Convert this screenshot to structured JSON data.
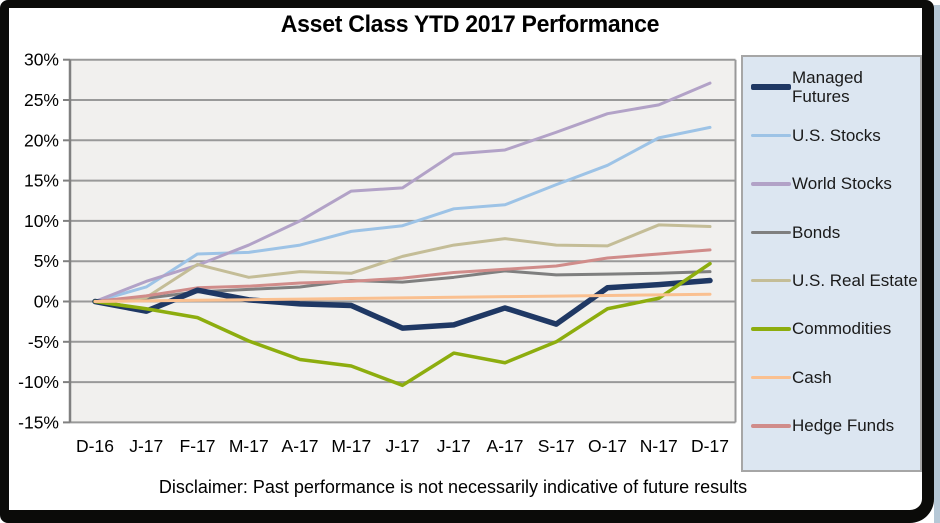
{
  "window": {
    "kind": "chart-image"
  },
  "chart_data": {
    "type": "line",
    "title": "Asset Class YTD 2017 Performance",
    "xlabel": "",
    "ylabel": "",
    "x_labels": [
      "D-16",
      "J-17",
      "F-17",
      "M-17",
      "A-17",
      "M-17",
      "J-17",
      "J-17",
      "A-17",
      "S-17",
      "O-17",
      "N-17",
      "D-17"
    ],
    "y_ticks": [
      30,
      25,
      20,
      15,
      10,
      5,
      0,
      -5,
      -10,
      -15
    ],
    "y_tick_labels": [
      "30%",
      "25%",
      "20%",
      "15%",
      "10%",
      "5%",
      "0%",
      "-5%",
      "-10%",
      "-15%"
    ],
    "ylim": [
      -15,
      30
    ],
    "grid": true,
    "legend_position": "right",
    "plot_bg": "#f1f0ee",
    "grid_color": "#999999",
    "axis_color": "#808080",
    "legend_bg": "#dce6f1",
    "legend_border": "#a6a6a6",
    "series": [
      {
        "name": "Managed Futures",
        "color": "#1f3864",
        "width": 5.5,
        "values": [
          0,
          -1.2,
          1.4,
          0.2,
          -0.3,
          -0.5,
          -3.3,
          -2.9,
          -0.8,
          -2.8,
          1.7,
          2.1,
          2.6
        ]
      },
      {
        "name": "U.S. Stocks",
        "color": "#9dc3e6",
        "width": 3,
        "values": [
          0,
          1.8,
          5.9,
          6.1,
          7.0,
          8.7,
          9.4,
          11.5,
          12.0,
          14.5,
          16.9,
          20.3,
          21.6
        ]
      },
      {
        "name": "World Stocks",
        "color": "#b2a2c7",
        "width": 3,
        "values": [
          0,
          2.5,
          4.5,
          7.0,
          10.0,
          13.7,
          14.1,
          18.3,
          18.8,
          21.0,
          23.3,
          24.4,
          27.1
        ]
      },
      {
        "name": "Bonds",
        "color": "#7f7f7f",
        "width": 3,
        "values": [
          0,
          0.4,
          1.2,
          1.5,
          1.8,
          2.6,
          2.4,
          3.0,
          3.8,
          3.3,
          3.4,
          3.5,
          3.7
        ]
      },
      {
        "name": "U.S. Real Estate",
        "color": "#c4bd97",
        "width": 3,
        "values": [
          0,
          0.5,
          4.6,
          3.0,
          3.7,
          3.5,
          5.6,
          7.0,
          7.8,
          7.0,
          6.9,
          9.5,
          9.3
        ]
      },
      {
        "name": "Commodities",
        "color": "#8dad0e",
        "width": 3.5,
        "values": [
          0,
          -0.9,
          -2.0,
          -4.9,
          -7.2,
          -8.0,
          -10.4,
          -6.4,
          -7.6,
          -5.0,
          -0.9,
          0.4,
          4.7
        ]
      },
      {
        "name": "Cash",
        "color": "#fac090",
        "width": 3,
        "values": [
          0,
          0.07,
          0.15,
          0.22,
          0.3,
          0.37,
          0.45,
          0.52,
          0.6,
          0.67,
          0.75,
          0.82,
          0.9
        ]
      },
      {
        "name": "Hedge Funds",
        "color": "#d08c8a",
        "width": 3,
        "values": [
          0,
          0.7,
          1.7,
          1.9,
          2.3,
          2.5,
          2.9,
          3.6,
          4.0,
          4.4,
          5.4,
          5.9,
          6.4
        ]
      }
    ]
  },
  "disclaimer": "Disclaimer: Past performance is not necessarily indicative of future results"
}
